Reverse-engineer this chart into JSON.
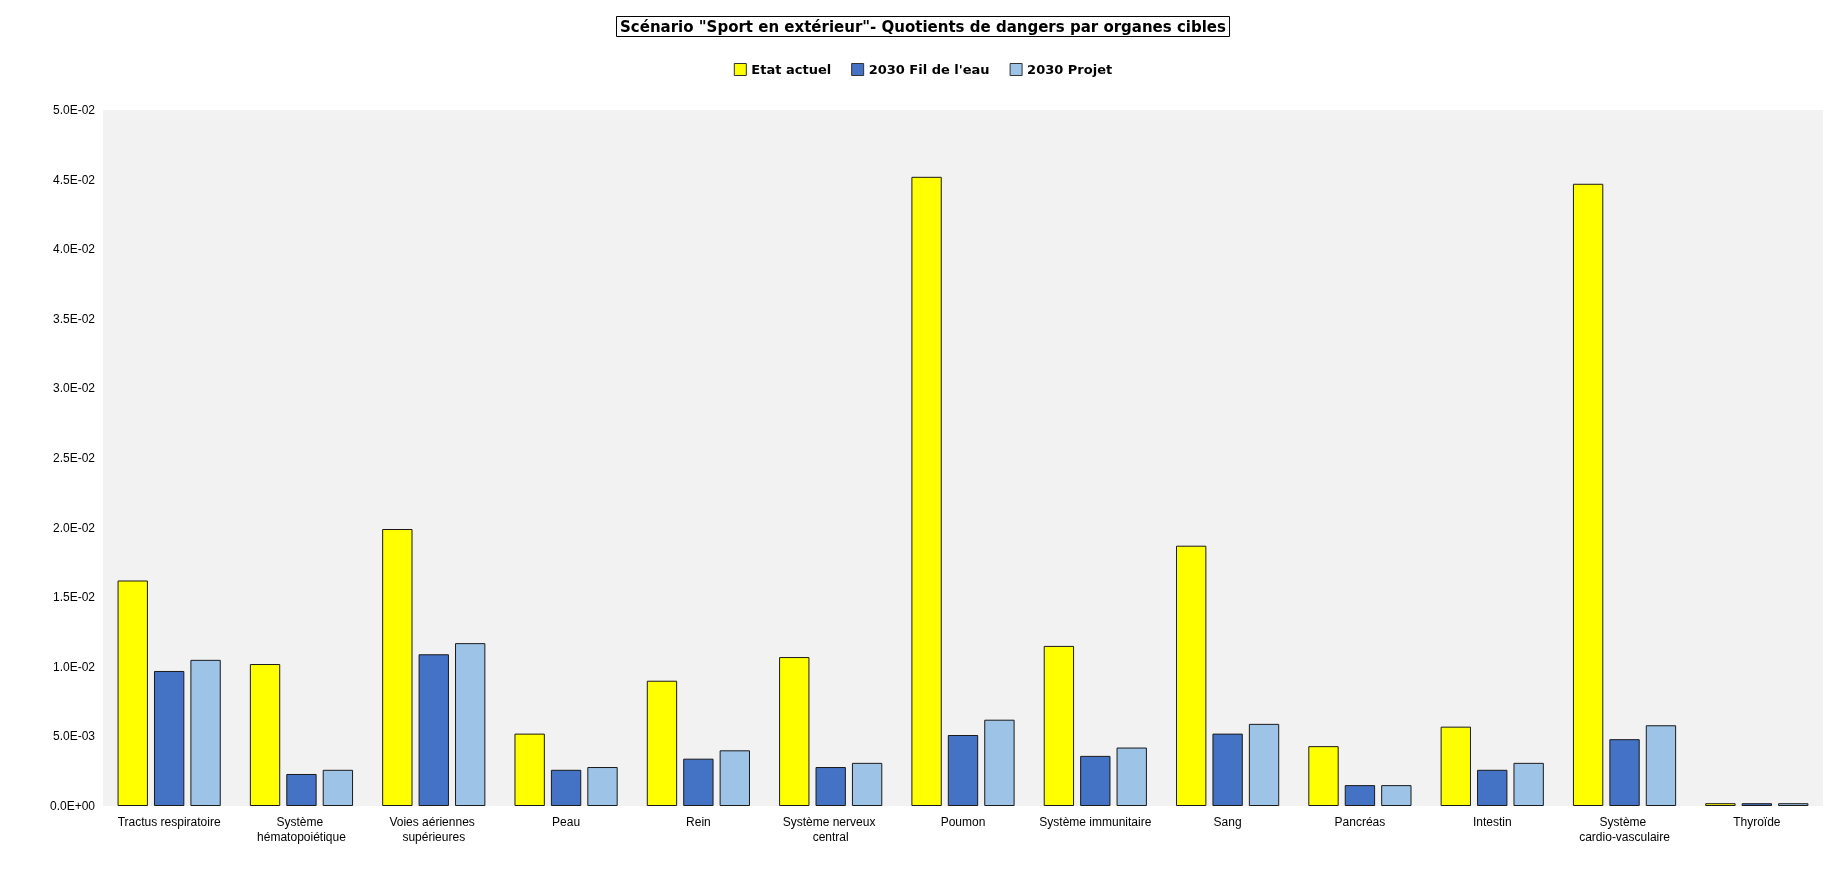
{
  "chart_data": {
    "type": "bar",
    "title": "Scénario \"Sport en extérieur\"- Quotients de dangers par organes cibles",
    "categories": [
      "Tractus respiratoire",
      "Système hématopoiétique",
      "Voies aériennes supérieures",
      "Peau",
      "Rein",
      "Système nerveux central",
      "Poumon",
      "Système immunitaire",
      "Sang",
      "Pancréas",
      "Intestin",
      "Système cardio-vasculaire",
      "Thyroïde"
    ],
    "series": [
      {
        "name": "Etat actuel",
        "color": "#ffff00",
        "values": [
          0.0162,
          0.0102,
          0.0199,
          0.0052,
          0.009,
          0.0107,
          0.0452,
          0.0115,
          0.0187,
          0.0043,
          0.0057,
          0.0447,
          0.0002
        ]
      },
      {
        "name": "2030 Fil de l'eau",
        "color": "#4472c4",
        "values": [
          0.0097,
          0.0023,
          0.0109,
          0.0026,
          0.0034,
          0.0028,
          0.0051,
          0.0036,
          0.0052,
          0.0015,
          0.0026,
          0.0048,
          0.0002
        ]
      },
      {
        "name": "2030 Projet",
        "color": "#9dc3e6",
        "values": [
          0.0105,
          0.0026,
          0.0117,
          0.0028,
          0.004,
          0.0031,
          0.0062,
          0.0042,
          0.0059,
          0.0015,
          0.0031,
          0.0058,
          0.0002
        ]
      }
    ],
    "ylim": [
      0,
      0.05
    ],
    "yticks": [
      {
        "value": 0,
        "label": "0.0E+00"
      },
      {
        "value": 0.005,
        "label": "5.0E-03"
      },
      {
        "value": 0.01,
        "label": "1.0E-02"
      },
      {
        "value": 0.015,
        "label": "1.5E-02"
      },
      {
        "value": 0.02,
        "label": "2.0E-02"
      },
      {
        "value": 0.025,
        "label": "2.5E-02"
      },
      {
        "value": 0.03,
        "label": "3.0E-02"
      },
      {
        "value": 0.035,
        "label": "3.5E-02"
      },
      {
        "value": 0.04,
        "label": "4.0E-02"
      },
      {
        "value": 0.045,
        "label": "4.5E-02"
      },
      {
        "value": 0.05,
        "label": "5.0E-02"
      }
    ],
    "grid": false,
    "legend": "top"
  }
}
